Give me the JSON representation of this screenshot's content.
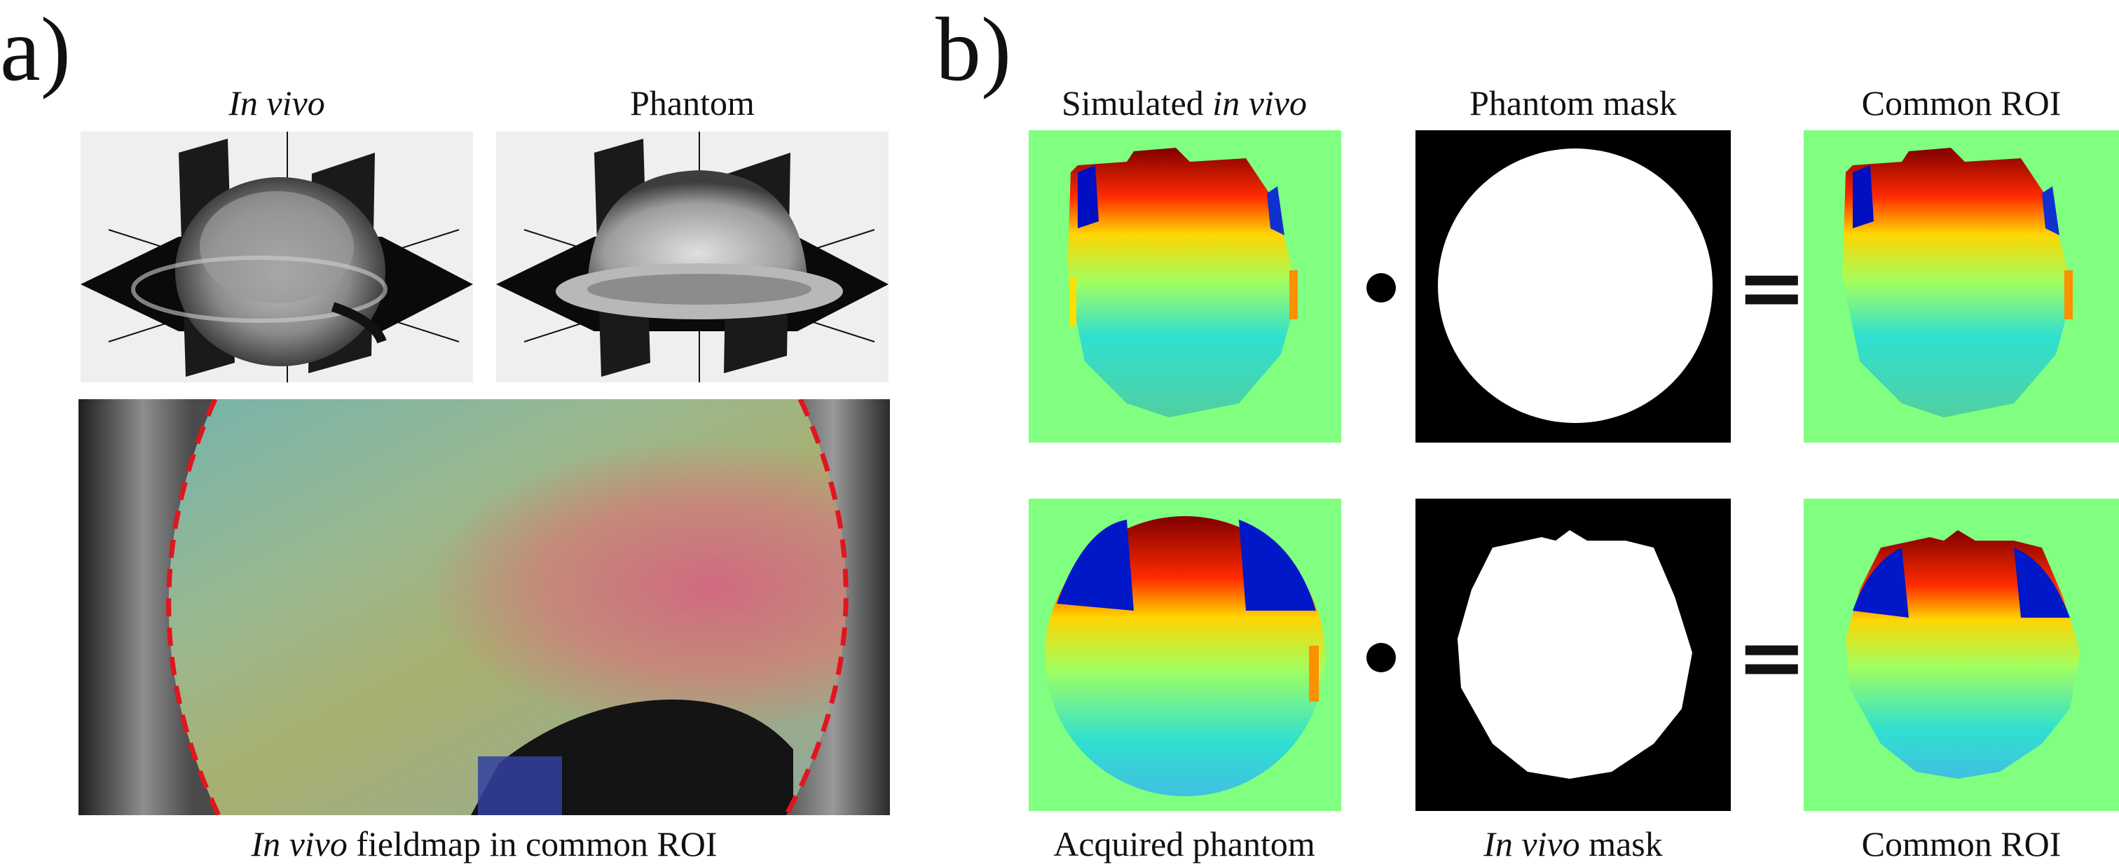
{
  "panel_a": {
    "letter": "a)",
    "render_labels": {
      "in_vivo": "In vivo",
      "phantom": "Phantom"
    },
    "fieldmap_caption": {
      "italic": "In vivo",
      "rest": " fieldmap in common ROI"
    }
  },
  "panel_b": {
    "letter": "b)",
    "row1": {
      "left_label": {
        "plain": "Simulated ",
        "italic": "in vivo"
      },
      "middle_label": "Phantom mask",
      "right_label": "Common ROI"
    },
    "row2": {
      "left_label": "Acquired phantom",
      "middle_label": {
        "italic": "In vivo",
        "rest": " mask"
      },
      "right_label": "Common ROI"
    },
    "operators": {
      "multiply": "•",
      "equals": "="
    }
  },
  "colors": {
    "tile_background": "#80ff80",
    "mask_background": "#000000",
    "roi_dashed_line": "#e0161e",
    "render_background": "#efefef"
  },
  "icons": {
    "multiply": "bullet-dot-icon",
    "equals": "equals-sign-icon"
  }
}
